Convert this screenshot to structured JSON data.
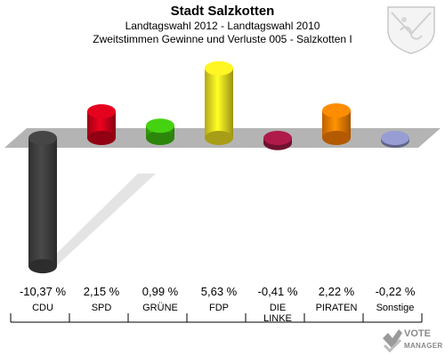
{
  "chart_data": {
    "type": "bar",
    "title": "Stadt Salzkotten",
    "subtitle": "Landtagswahl 2012 - Landtagswahl 2010",
    "subtitle2": "Zweitstimmen Gewinne und Verluste 005 - Salzkotten I",
    "categories": [
      "CDU",
      "SPD",
      "GRÜNE",
      "FDP",
      "DIE LINKE",
      "PIRATEN",
      "Sonstige"
    ],
    "values": [
      -10.37,
      2.15,
      0.99,
      5.63,
      -0.41,
      2.22,
      -0.22
    ],
    "value_labels": [
      "-10,37 %",
      "2,15 %",
      "0,99 %",
      "5,63 %",
      "-0,41 %",
      "2,22 %",
      "-0,22 %"
    ],
    "colors": [
      "#404040",
      "#d0021b",
      "#3fbf0f",
      "#f0e020",
      "#a01844",
      "#ff8000",
      "#8a8fc0"
    ],
    "ylim": [
      -11,
      6
    ]
  },
  "logo": {
    "line1": "VOTE",
    "line2": "MANAGER"
  }
}
